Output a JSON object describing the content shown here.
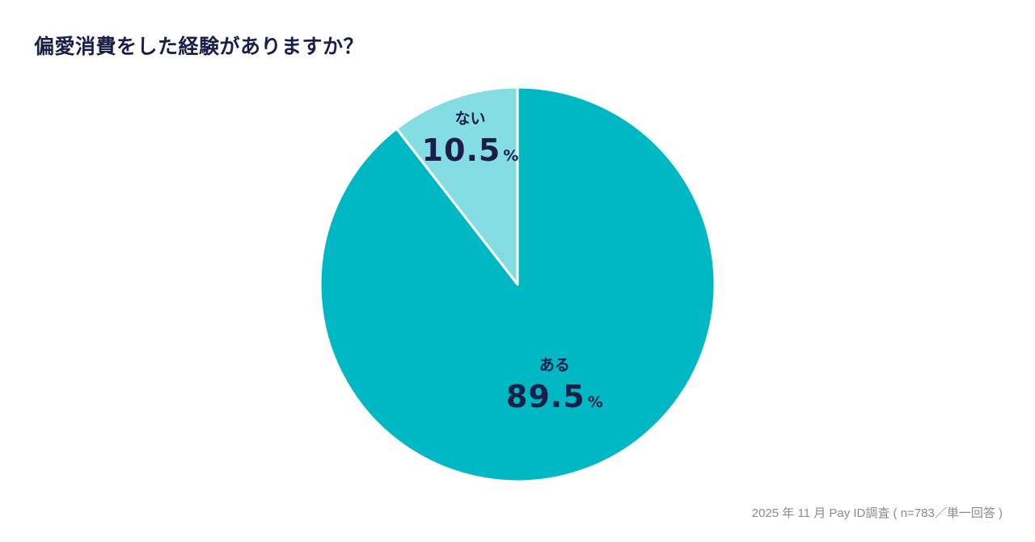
{
  "title": "偏愛消費をした経験がありますか？",
  "footnote": "2025 年 11 月 Pay ID調査 ( n=783／単一回答 )",
  "colors": {
    "primary": "#00b8c4",
    "secondary": "#84dde2",
    "text_dark": "#1a1f4a",
    "stroke": "#ffffff"
  },
  "chart_data": {
    "type": "pie",
    "title": "偏愛消費をした経験がありますか？",
    "start": "top",
    "direction": "clockwise",
    "slices": [
      {
        "label": "ある",
        "value": 89.5,
        "value_text": "89.5",
        "unit": "%",
        "color": "#00b8c4"
      },
      {
        "label": "ない",
        "value": 10.5,
        "value_text": "10.5",
        "unit": "%",
        "color": "#84dde2"
      }
    ]
  }
}
